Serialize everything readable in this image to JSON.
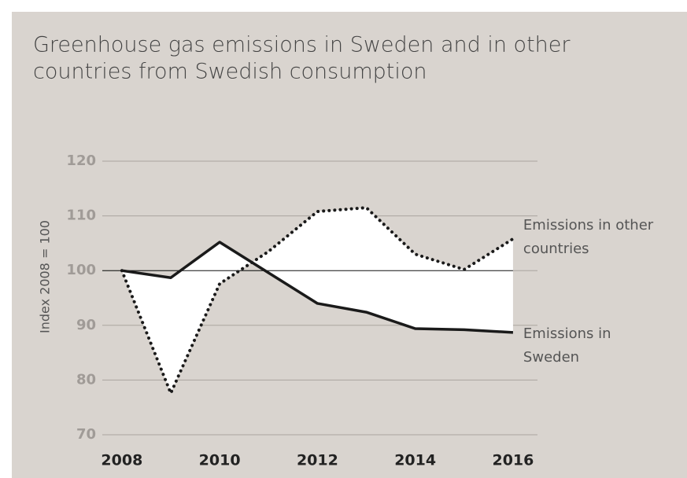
{
  "chart_data": {
    "type": "line",
    "title": [
      "Greenhouse gas emissions in Sweden and in other",
      "countries from Swedish consumption"
    ],
    "ylabel": "Index 2008 = 100",
    "x": [
      2008,
      2009,
      2010,
      2011,
      2012,
      2013,
      2014,
      2015,
      2016
    ],
    "series": [
      {
        "name": [
          "Emissions in",
          "Sweden"
        ],
        "color": "#1a1a1a",
        "style": "solid",
        "values": [
          100,
          98.7,
          105.2,
          99.6,
          94,
          92.4,
          89.4,
          89.2,
          88.7
        ]
      },
      {
        "name": [
          "Emissions in other",
          "countries"
        ],
        "color": "#1a1a1a",
        "style": "dotted",
        "values": [
          100,
          77.6,
          97.6,
          103.5,
          110.8,
          111.5,
          103,
          100.2,
          105.8
        ]
      }
    ],
    "fill_between": true,
    "reference_line": 100,
    "xlim": [
      2007.6,
      2016.5
    ],
    "xticks": [
      2008,
      2010,
      2012,
      2014,
      2016
    ],
    "ylim": [
      70,
      120
    ],
    "yticks": [
      70,
      80,
      90,
      100,
      110,
      120
    ],
    "grid": true
  }
}
